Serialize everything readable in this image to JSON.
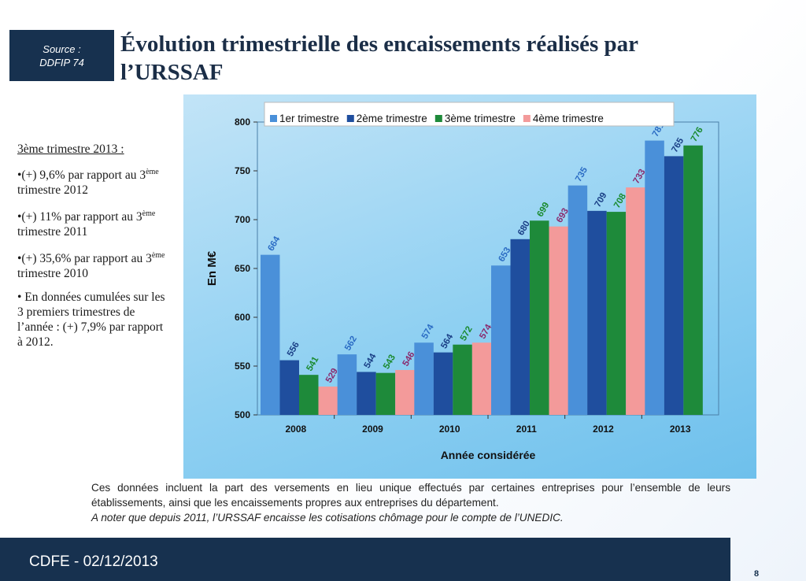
{
  "source": {
    "line1": "Source :",
    "line2": "DDFIP 74"
  },
  "title": "Évolution trimestrielle des encaissements réalisés par l’URSSAF",
  "left_panel": {
    "heading": "3ème trimestre 2013 :",
    "items": [
      {
        "pre": "•(+) 9,6% par rapport au 3",
        "sup": "ème",
        "post": " trimestre 2012"
      },
      {
        "pre": "•(+) 11% par rapport au 3",
        "sup": "ème",
        "post": " trimestre 2011"
      },
      {
        "pre": "•(+) 35,6% par rapport au 3",
        "sup": "ème",
        "post": " trimestre 2010"
      },
      {
        "pre": "• En données cumulées sur les 3 premiers trimestres de l’année : (+) 7,9% par rapport à 2012.",
        "sup": "",
        "post": ""
      }
    ]
  },
  "chart_data": {
    "type": "bar",
    "categories": [
      "2008",
      "2009",
      "2010",
      "2011",
      "2012",
      "2013"
    ],
    "series": [
      {
        "name": "1er trimestre",
        "color": "#4a90d9",
        "values": [
          664,
          562,
          574,
          653,
          735,
          781
        ]
      },
      {
        "name": "2ème trimestre",
        "color": "#1f4e9e",
        "values": [
          556,
          544,
          564,
          680,
          709,
          765
        ]
      },
      {
        "name": "3ème trimestre",
        "color": "#1e8a3a",
        "values": [
          541,
          543,
          572,
          699,
          708,
          776
        ]
      },
      {
        "name": "4ème trimestre",
        "color": "#f39a9a",
        "values": [
          529,
          546,
          574,
          693,
          733,
          null
        ]
      }
    ],
    "label_colors": [
      "#2b6cc4",
      "#1a3f86",
      "#1a8a2e",
      "#8a2a6e"
    ],
    "ylabel": "En M€",
    "xlabel": "Année considérée",
    "ylim": [
      500,
      800
    ],
    "yticks": [
      500,
      550,
      600,
      650,
      700,
      750,
      800
    ],
    "legend_position": "top",
    "grid": false
  },
  "note": {
    "line1": "Ces données incluent la part des versements en lieu unique effectués par certaines entreprises pour l’ensemble de leurs établissements, ainsi que les encaissements propres aux entreprises du département.",
    "line2": "A noter que depuis 2011, l’URSSAF encaisse les cotisations chômage pour le compte de l’UNEDIC."
  },
  "footer": {
    "text": "CDFE - 02/12/2013",
    "page": "8"
  }
}
